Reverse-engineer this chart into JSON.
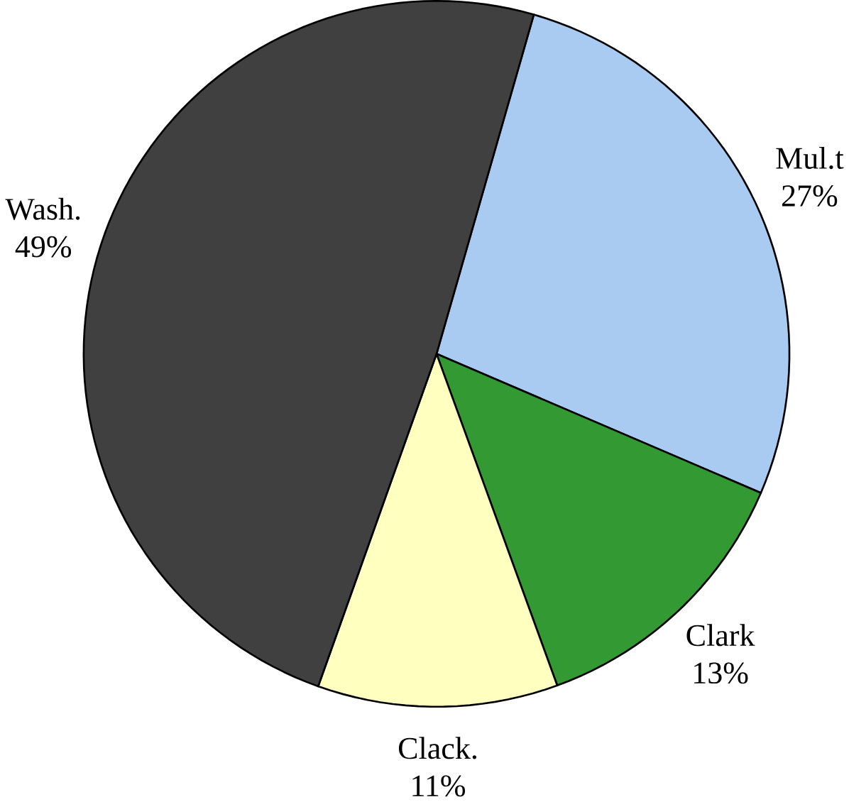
{
  "chart_data": {
    "type": "pie",
    "categories": [
      "Mul.t",
      "Clark",
      "Clack.",
      "Wash."
    ],
    "values": [
      27,
      13,
      11,
      49
    ],
    "value_labels": [
      "27%",
      "13%",
      "11%",
      "49%"
    ],
    "colors": [
      "#a9cbf1",
      "#339933",
      "#ffffc0",
      "#404040"
    ]
  }
}
